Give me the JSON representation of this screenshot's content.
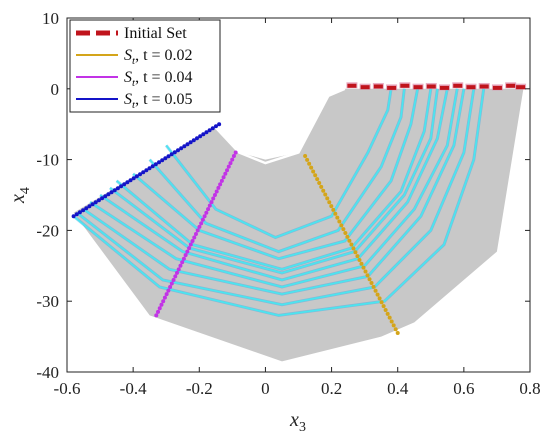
{
  "chart_data": {
    "type": "scatter",
    "xlabel_main": "x",
    "xlabel_sub": "3",
    "ylabel_main": "x",
    "ylabel_sub": "4",
    "xlim": [
      -0.6,
      0.8
    ],
    "ylim": [
      -40,
      10
    ],
    "xticks": [
      -0.6,
      -0.4,
      -0.2,
      0,
      0.2,
      0.4,
      0.6,
      0.8
    ],
    "xtick_labels": [
      "-0.6",
      "-0.4",
      "-0.2",
      "0",
      "0.2",
      "0.4",
      "0.6",
      "0.8"
    ],
    "yticks": [
      -40,
      -30,
      -20,
      -10,
      0,
      10
    ],
    "ytick_labels": [
      "-40",
      "-30",
      "-20",
      "-10",
      "0",
      "10"
    ],
    "grid": false,
    "legend_position": "top-left",
    "colors": {
      "region": "#c8c8c8",
      "initial": "#c0141c",
      "initial_shadow": "#e089a8",
      "trajectories": "#4ae6f0",
      "trajectories_shadow": "#3ab0e8",
      "boundary": "#ffffff",
      "t002": "#d4a51a",
      "t004": "#c233e6",
      "t005": "#1414c8"
    },
    "reachable_region": [
      [
        -0.58,
        -17.5
      ],
      [
        -0.15,
        -5.5
      ],
      [
        -0.08,
        -9
      ],
      [
        0.0,
        -10
      ],
      [
        0.1,
        -9
      ],
      [
        0.19,
        -1
      ],
      [
        0.24,
        0
      ],
      [
        0.78,
        0
      ],
      [
        0.7,
        -23
      ],
      [
        0.45,
        -33
      ],
      [
        0.35,
        -35
      ],
      [
        0.05,
        -38.5
      ],
      [
        -0.35,
        -32
      ]
    ],
    "boundary_curve": [
      [
        -0.15,
        -5.5
      ],
      [
        -0.08,
        -9
      ],
      [
        0.0,
        -10.5
      ],
      [
        0.1,
        -9
      ],
      [
        0.19,
        -1
      ],
      [
        0.24,
        0
      ]
    ],
    "trajectories": [
      [
        [
          -0.53,
          -16
        ],
        [
          -0.27,
          -24
        ],
        [
          0.05,
          -28
        ],
        [
          0.3,
          -25
        ],
        [
          0.45,
          -17
        ],
        [
          0.55,
          -8
        ],
        [
          0.58,
          0
        ]
      ],
      [
        [
          -0.5,
          -15
        ],
        [
          -0.25,
          -23
        ],
        [
          0.05,
          -27
        ],
        [
          0.28,
          -24
        ],
        [
          0.43,
          -16
        ],
        [
          0.52,
          -7
        ],
        [
          0.55,
          0
        ]
      ],
      [
        [
          -0.47,
          -14
        ],
        [
          -0.23,
          -22.5
        ],
        [
          0.05,
          -26
        ],
        [
          0.27,
          -23
        ],
        [
          0.42,
          -15
        ],
        [
          0.5,
          -7
        ],
        [
          0.52,
          0
        ]
      ],
      [
        [
          -0.45,
          -13
        ],
        [
          -0.22,
          -22
        ],
        [
          0.05,
          -25.5
        ],
        [
          0.26,
          -22.5
        ],
        [
          0.41,
          -14.5
        ],
        [
          0.48,
          -6
        ],
        [
          0.5,
          0
        ]
      ],
      [
        [
          -0.55,
          -17
        ],
        [
          -0.29,
          -25.5
        ],
        [
          0.05,
          -29
        ],
        [
          0.31,
          -26.5
        ],
        [
          0.47,
          -18
        ],
        [
          0.57,
          -8
        ],
        [
          0.6,
          0
        ]
      ],
      [
        [
          -0.4,
          -12
        ],
        [
          -0.2,
          -20
        ],
        [
          0.04,
          -24
        ],
        [
          0.24,
          -21.5
        ],
        [
          0.38,
          -13
        ],
        [
          0.44,
          -5
        ],
        [
          0.46,
          0
        ]
      ],
      [
        [
          -0.35,
          -10
        ],
        [
          -0.18,
          -19
        ],
        [
          0.04,
          -23
        ],
        [
          0.22,
          -20
        ],
        [
          0.35,
          -11
        ],
        [
          0.41,
          -4
        ],
        [
          0.42,
          0
        ]
      ],
      [
        [
          -0.3,
          -8
        ],
        [
          -0.15,
          -17
        ],
        [
          0.03,
          -21
        ],
        [
          0.2,
          -18
        ],
        [
          0.31,
          -9
        ],
        [
          0.37,
          -3
        ],
        [
          0.38,
          0
        ]
      ],
      [
        [
          -0.58,
          -18
        ],
        [
          -0.32,
          -28
        ],
        [
          0.04,
          -32
        ],
        [
          0.36,
          -30
        ],
        [
          0.54,
          -22
        ],
        [
          0.63,
          -10
        ],
        [
          0.66,
          0
        ]
      ],
      [
        [
          -0.57,
          -17.5
        ],
        [
          -0.31,
          -27
        ],
        [
          0.05,
          -30.5
        ],
        [
          0.33,
          -28
        ],
        [
          0.5,
          -20
        ],
        [
          0.6,
          -9
        ],
        [
          0.63,
          0
        ]
      ]
    ],
    "series": [
      {
        "name": "Initial Set",
        "legend_label": "Initial Set",
        "x": [
          0.26,
          0.3,
          0.34,
          0.38,
          0.42,
          0.46,
          0.5,
          0.54,
          0.58,
          0.62,
          0.66,
          0.7,
          0.74,
          0.77
        ],
        "y": [
          0.5,
          0.3,
          0.4,
          0.2,
          0.5,
          0.3,
          0.4,
          0.2,
          0.5,
          0.3,
          0.4,
          0.2,
          0.5,
          0.3
        ]
      },
      {
        "name": "S_t, t = 0.02",
        "legend_label": ", t = 0.02",
        "segment": [
          [
            0.12,
            -9.5
          ],
          [
            0.4,
            -34.5
          ]
        ]
      },
      {
        "name": "S_t, t = 0.04",
        "legend_label": ", t = 0.04",
        "segment": [
          [
            -0.09,
            -9
          ],
          [
            -0.33,
            -32
          ]
        ]
      },
      {
        "name": "S_t, t = 0.05",
        "legend_label": ", t = 0.05",
        "segment": [
          [
            -0.14,
            -5
          ],
          [
            -0.58,
            -18
          ]
        ]
      }
    ],
    "legend_symbol": "S",
    "legend_symbol_sub": "t"
  }
}
